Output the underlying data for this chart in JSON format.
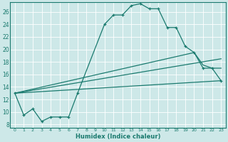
{
  "xlabel": "Humidex (Indice chaleur)",
  "bg_color": "#cde8e8",
  "grid_color": "#ffffff",
  "line_color": "#1a7a6e",
  "xlim": [
    -0.5,
    23.5
  ],
  "ylim": [
    7.5,
    27.5
  ],
  "xticks": [
    0,
    1,
    2,
    3,
    4,
    5,
    6,
    7,
    8,
    9,
    10,
    11,
    12,
    13,
    14,
    15,
    16,
    17,
    18,
    19,
    20,
    21,
    22,
    23
  ],
  "yticks": [
    8,
    10,
    12,
    14,
    16,
    18,
    20,
    22,
    24,
    26
  ],
  "main_line": {
    "x": [
      0,
      1,
      2,
      3,
      4,
      5,
      6,
      7,
      10,
      11,
      12,
      13,
      14,
      15,
      16,
      17,
      18,
      19,
      20,
      21,
      22,
      23
    ],
    "y": [
      13,
      9.5,
      10.5,
      8.5,
      9.2,
      9.2,
      9.2,
      13,
      24,
      25.5,
      25.5,
      27,
      27.3,
      26.5,
      26.5,
      23.5,
      23.5,
      20.5,
      19.5,
      17,
      17,
      15
    ]
  },
  "line_zigzag": {
    "x": [
      0,
      20,
      21,
      22,
      23
    ],
    "y": [
      13,
      19.5,
      17.5,
      17,
      17
    ]
  },
  "line_mid": {
    "x": [
      0,
      23
    ],
    "y": [
      13,
      18.5
    ]
  },
  "line_low": {
    "x": [
      0,
      23
    ],
    "y": [
      13,
      15
    ]
  }
}
